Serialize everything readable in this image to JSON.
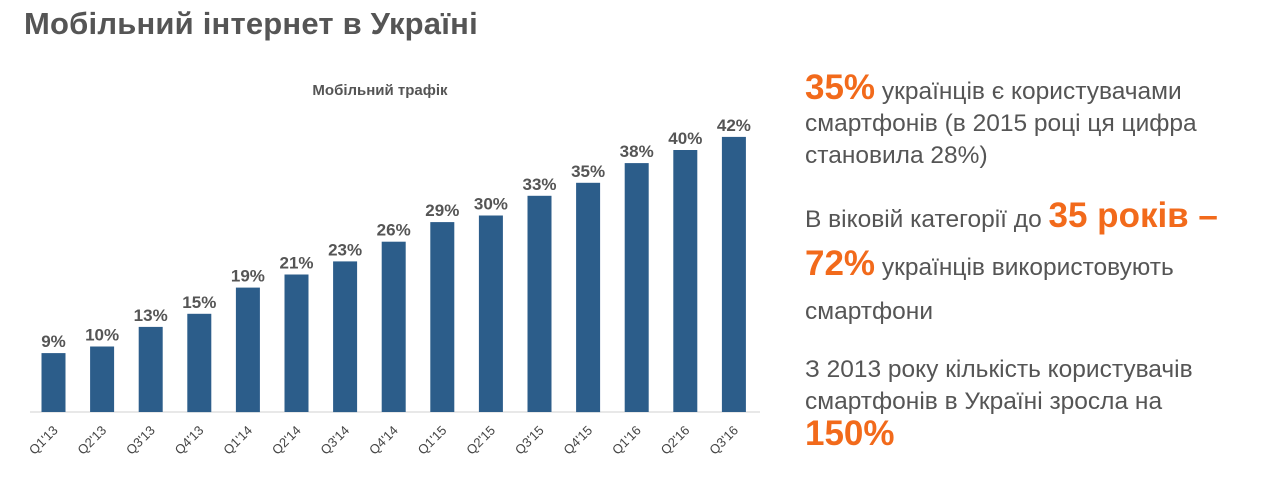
{
  "page": {
    "title": "Мобільний інтернет в Україні"
  },
  "chart_data": {
    "type": "bar",
    "title": "Мобільний трафік",
    "categories": [
      "Q1'13",
      "Q2'13",
      "Q3'13",
      "Q4'13",
      "Q1'14",
      "Q2'14",
      "Q3'14",
      "Q4'14",
      "Q1'15",
      "Q2'15",
      "Q3'15",
      "Q4'15",
      "Q1'16",
      "Q2'16",
      "Q3'16"
    ],
    "values": [
      9,
      10,
      13,
      15,
      19,
      21,
      23,
      26,
      29,
      30,
      33,
      35,
      38,
      40,
      42
    ],
    "value_labels": [
      "9%",
      "10%",
      "13%",
      "15%",
      "19%",
      "21%",
      "23%",
      "26%",
      "29%",
      "30%",
      "33%",
      "35%",
      "38%",
      "40%",
      "42%"
    ],
    "ylim": [
      0,
      42
    ],
    "grid": false,
    "colors": {
      "bar": "#2c5d8a",
      "label": "#555555"
    }
  },
  "facts": {
    "fact1": {
      "highlight": "35%",
      "text": " українців є користувачами смартфонів (в 2015 році ця цифра становила 28%)"
    },
    "fact2": {
      "prefix": "В віковій категорії до ",
      "highlight1": "35 років –",
      "highlight2": "72%",
      "text": " українців використовують смартфони"
    },
    "fact3": {
      "text": "З 2013 року кількість користувачів смартфонів  в Україні зросла на ",
      "highlight": "150%"
    },
    "colors": {
      "accent": "#f26a1b",
      "text": "#555555"
    }
  }
}
